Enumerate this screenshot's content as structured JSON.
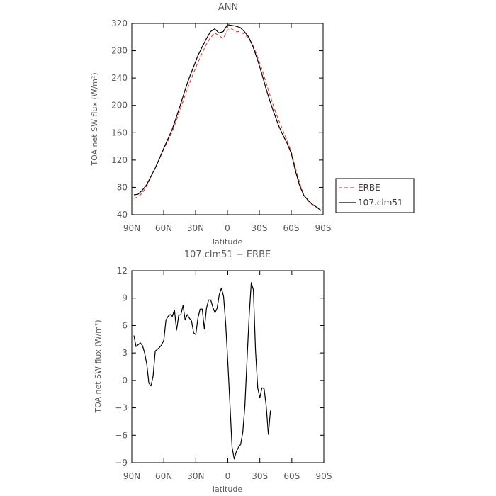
{
  "chart_data": [
    {
      "type": "line",
      "title": "ANN",
      "xlabel": "latitude",
      "ylabel": "TOA net SW flux (W/m²)",
      "xlim": [
        90,
        -90
      ],
      "ylim": [
        40,
        320
      ],
      "x_ticks": [
        90,
        60,
        30,
        0,
        -30,
        -60,
        -90
      ],
      "x_tick_labels": [
        "90N",
        "60N",
        "30N",
        "0",
        "30S",
        "60S",
        "90S"
      ],
      "y_ticks": [
        40,
        80,
        120,
        160,
        200,
        240,
        280,
        320
      ],
      "y_tick_labels": [
        "40",
        "80",
        "120",
        "160",
        "200",
        "240",
        "280",
        "320"
      ],
      "grid": false,
      "legend_position": "right, outside plot",
      "series": [
        {
          "name": "ERBE",
          "color": "#e8423c",
          "dash": "dashed",
          "x": [
            88,
            84,
            80,
            76,
            72,
            68,
            64,
            60,
            56,
            52,
            48,
            44,
            40,
            36,
            32,
            28,
            24,
            20,
            16,
            12,
            8,
            4,
            0,
            -4,
            -8,
            -12,
            -16,
            -20,
            -24,
            -28,
            -32,
            -36,
            -40,
            -44,
            -48,
            -52,
            -56,
            -60,
            -64,
            -68,
            -72,
            -76,
            -80,
            -84,
            -88
          ],
          "values": [
            64,
            66,
            72,
            82,
            95,
            108,
            122,
            136,
            148,
            161,
            178,
            196,
            214,
            231,
            247,
            262,
            276,
            289,
            299,
            306,
            302,
            298,
            310,
            312,
            308,
            308,
            304,
            298,
            288,
            272,
            255,
            235,
            215,
            196,
            179,
            164,
            149,
            132,
            108,
            86,
            68,
            60,
            54,
            51,
            48
          ]
        },
        {
          "name": "107.clm51",
          "color": "#000000",
          "dash": "solid",
          "x": [
            88,
            84,
            80,
            76,
            72,
            68,
            64,
            60,
            56,
            52,
            48,
            44,
            40,
            36,
            32,
            28,
            24,
            20,
            16,
            12,
            8,
            4,
            0,
            -4,
            -8,
            -12,
            -16,
            -20,
            -24,
            -28,
            -32,
            -36,
            -40,
            -44,
            -48,
            -52,
            -56,
            -60,
            -64,
            -68,
            -72,
            -76,
            -80,
            -84,
            -88
          ],
          "values": [
            69,
            70,
            76,
            84,
            96,
            108,
            122,
            137,
            151,
            165,
            183,
            202,
            222,
            240,
            256,
            272,
            285,
            297,
            308,
            312,
            306,
            308,
            318,
            317,
            316,
            314,
            308,
            300,
            286,
            268,
            248,
            226,
            206,
            188,
            171,
            157,
            145,
            130,
            104,
            82,
            68,
            61,
            55,
            51,
            46
          ]
        }
      ]
    },
    {
      "type": "line",
      "title": "107.clm51 − ERBE",
      "xlabel": "latitude",
      "ylabel": "TOA net SW flux (W/m²)",
      "xlim": [
        90,
        -90
      ],
      "ylim": [
        -9,
        12
      ],
      "x_ticks": [
        90,
        60,
        30,
        0,
        -30,
        -60,
        -90
      ],
      "x_tick_labels": [
        "90N",
        "60N",
        "30N",
        "0",
        "30S",
        "60S",
        "90S"
      ],
      "y_ticks": [
        -9,
        -6,
        -3,
        0,
        3,
        6,
        9,
        12
      ],
      "y_tick_labels": [
        "−9",
        "−6",
        "−3",
        "0",
        "3",
        "6",
        "9",
        "12"
      ],
      "grid": false,
      "series": [
        {
          "color": "#000000",
          "dash": "solid",
          "x": [
            88,
            86,
            84,
            82,
            80,
            78,
            76,
            74,
            72,
            70,
            68,
            66,
            64,
            62,
            60,
            58,
            56,
            54,
            52,
            50,
            48,
            46,
            44,
            42,
            40,
            38,
            36,
            34,
            32,
            30,
            28,
            26,
            24,
            22,
            20,
            18,
            16,
            14,
            12,
            10,
            8,
            6,
            4,
            2,
            0,
            -2,
            -4,
            -6,
            -8,
            -10,
            -12,
            -14,
            -16,
            -18,
            -20,
            -22,
            -24,
            -26,
            -28,
            -30,
            -32,
            -34,
            -36,
            -38,
            -40,
            -42,
            -44,
            -46,
            -48,
            -50,
            -52,
            -54,
            -56,
            -58,
            -60,
            -62,
            -64,
            -66,
            -68,
            -70,
            -72,
            -74,
            -76,
            -78,
            -80,
            -82,
            -84,
            -86,
            -88
          ],
          "values": [
            4.9,
            3.7,
            3.9,
            4.1,
            3.8,
            3.0,
            1.8,
            -0.3,
            -0.6,
            0.5,
            3.2,
            3.4,
            3.6,
            3.9,
            4.4,
            6.6,
            7.0,
            7.2,
            7.0,
            7.7,
            5.5,
            7.1,
            7.2,
            8.2,
            6.6,
            7.2,
            6.8,
            6.5,
            5.2,
            5.0,
            6.8,
            7.8,
            7.8,
            5.6,
            7.9,
            8.8,
            8.8,
            8.0,
            7.4,
            7.9,
            9.4,
            10.1,
            9.2,
            6.2,
            2.0,
            -2.6,
            -7.3,
            -8.6,
            -7.8,
            -7.3,
            -7.0,
            -5.7,
            -2.8,
            2.2,
            7.0,
            10.7,
            9.9,
            3.3,
            -0.8,
            -1.9,
            -0.8,
            -0.9,
            -2.8,
            -5.9,
            -3.3,
            null,
            null,
            null,
            null,
            null,
            null,
            null,
            null,
            null,
            null,
            null,
            null,
            null,
            null,
            null,
            null,
            null,
            null,
            null,
            null,
            null,
            null,
            null,
            null
          ]
        }
      ]
    }
  ],
  "legend": {
    "items": [
      {
        "label": "ERBE",
        "color": "#e8423c",
        "dash": "dashed"
      },
      {
        "label": "107.clm51",
        "color": "#000000",
        "dash": "solid"
      }
    ]
  }
}
